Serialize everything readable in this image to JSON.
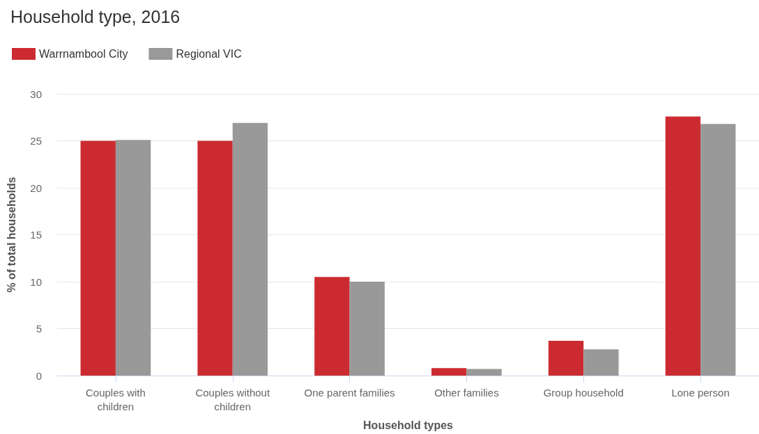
{
  "chart_data": {
    "type": "bar",
    "title": "Household type, 2016",
    "xlabel": "Household types",
    "ylabel": "% of total households",
    "categories": [
      "Couples with children",
      "Couples without children",
      "One parent families",
      "Other families",
      "Group household",
      "Lone person"
    ],
    "series": [
      {
        "name": "Warrnambool City",
        "color": "#cb2b30",
        "values": [
          25.0,
          25.0,
          10.5,
          0.8,
          3.7,
          27.6
        ]
      },
      {
        "name": "Regional VIC",
        "color": "#999999",
        "values": [
          25.1,
          26.9,
          10.0,
          0.7,
          2.8,
          26.8
        ]
      }
    ],
    "ylim": [
      0,
      30
    ],
    "yticks": [
      0,
      5,
      10,
      15,
      20,
      25,
      30
    ],
    "grid": "y",
    "legend": "top left"
  }
}
